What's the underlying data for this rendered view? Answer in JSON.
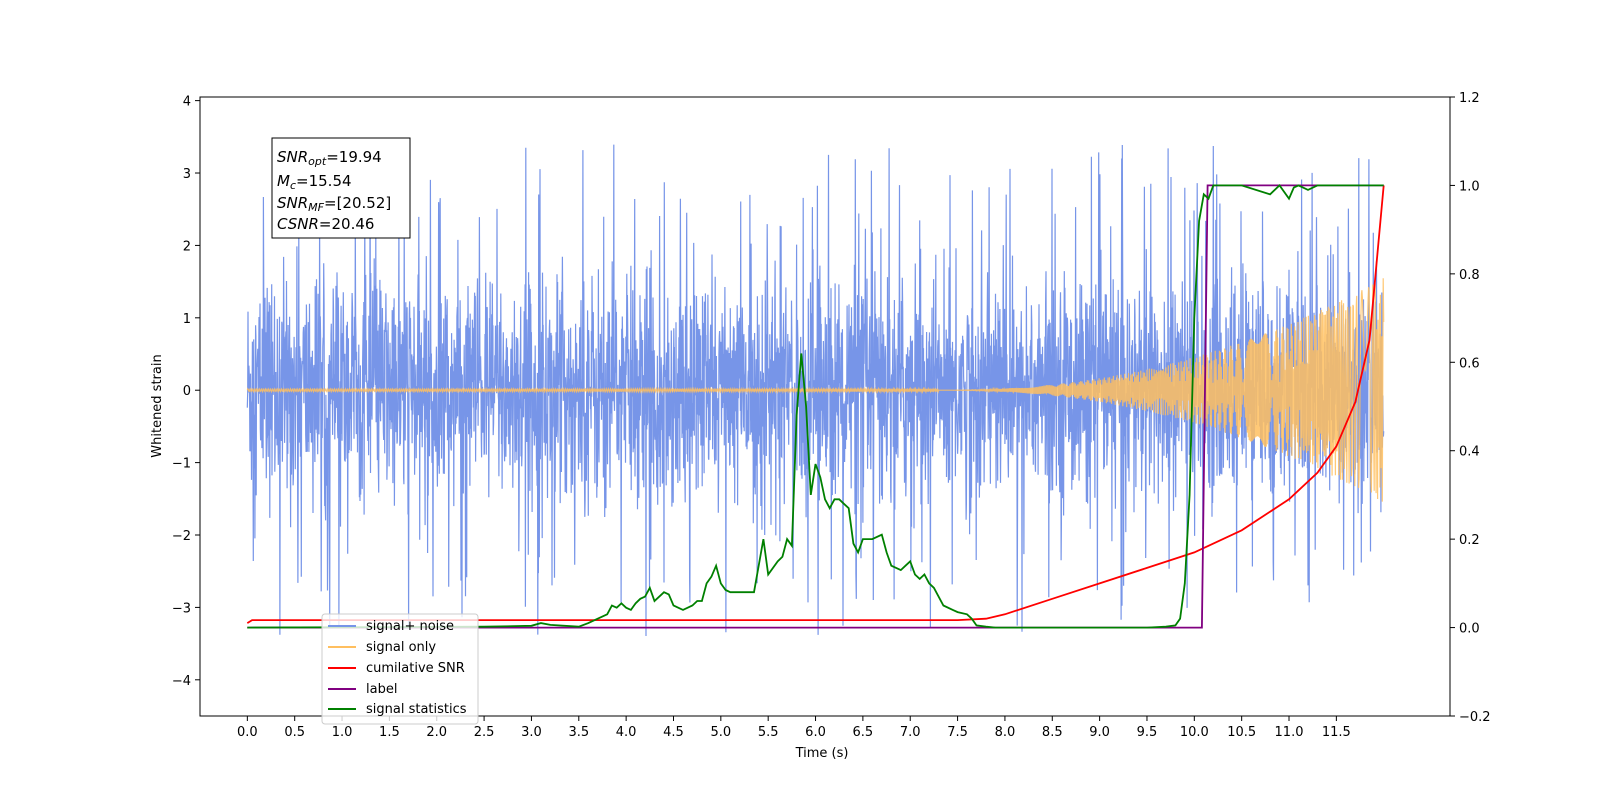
{
  "chart_data": {
    "type": "line",
    "xlabel": "Time (s)",
    "ylabel": "Whitened strain",
    "xlim": [
      -0.5,
      12.7
    ],
    "ylim_left": [
      -4.5,
      4.05
    ],
    "ylim_right": [
      -0.2,
      1.2
    ],
    "x_ticks": [
      "0.0",
      "0.5",
      "1.0",
      "1.5",
      "2.0",
      "2.5",
      "3.0",
      "3.5",
      "4.0",
      "4.5",
      "5.0",
      "5.5",
      "6.0",
      "6.5",
      "7.0",
      "7.5",
      "8.0",
      "8.5",
      "9.0",
      "9.5",
      "10.0",
      "10.5",
      "11.0",
      "11.5"
    ],
    "y_ticks_left": [
      "4",
      "3",
      "2",
      "1",
      "0",
      "−1",
      "−2",
      "−3",
      "−4"
    ],
    "y_ticks_right": [
      "1.2",
      "1.0",
      "0.8",
      "0.6",
      "0.4",
      "0.2",
      "0.0",
      "−0.2"
    ],
    "annotation": {
      "snr_opt": {
        "sym": "SNR",
        "sub": "opt",
        "val": "=19.94"
      },
      "mc": {
        "sym": "M",
        "sub": "c",
        "val": "=15.54"
      },
      "snr_mf": {
        "sym": "SNR",
        "sub": "MF",
        "val": "=[20.52]"
      },
      "csnr": {
        "sym": "CSNR",
        "val": "=20.46"
      }
    },
    "series": [
      {
        "name": "signal+ noise",
        "color": "#7795e8",
        "axis": "left",
        "kind": "noise",
        "x_range": [
          0.0,
          12.0
        ],
        "typical_amplitude": 1.8,
        "peak_max": 3.68,
        "peak_min": -4.1
      },
      {
        "name": "signal only",
        "color": "#ffbf5f",
        "axis": "left",
        "kind": "chirp",
        "x_range": [
          0.0,
          12.0
        ],
        "amplitude_end": 1.55,
        "chirp_onset": 7.3
      },
      {
        "name": "cumilative SNR",
        "color": "#ff0000",
        "axis": "right",
        "x": [
          0.0,
          0.05,
          7.5,
          7.8,
          8.0,
          8.5,
          9.0,
          9.5,
          10.0,
          10.5,
          11.0,
          11.3,
          11.5,
          11.7,
          11.85,
          12.0
        ],
        "y": [
          0.01,
          0.017,
          0.017,
          0.02,
          0.03,
          0.065,
          0.1,
          0.135,
          0.17,
          0.22,
          0.29,
          0.35,
          0.41,
          0.51,
          0.65,
          1.0
        ]
      },
      {
        "name": "label",
        "color": "#800080",
        "axis": "right",
        "x": [
          0.0,
          10.08,
          10.14,
          12.0
        ],
        "y": [
          0.0,
          0.0,
          1.0,
          1.0
        ]
      },
      {
        "name": "signal statistics",
        "color": "#008000",
        "axis": "right",
        "x": [
          0.0,
          2.5,
          3.0,
          3.1,
          3.2,
          3.5,
          3.6,
          3.7,
          3.8,
          3.85,
          3.9,
          3.95,
          4.0,
          4.05,
          4.1,
          4.15,
          4.2,
          4.25,
          4.3,
          4.35,
          4.4,
          4.45,
          4.5,
          4.55,
          4.6,
          4.7,
          4.75,
          4.8,
          4.85,
          4.9,
          4.95,
          5.0,
          5.05,
          5.1,
          5.2,
          5.3,
          5.35,
          5.45,
          5.5,
          5.6,
          5.65,
          5.7,
          5.75,
          5.8,
          5.85,
          5.9,
          5.95,
          6.0,
          6.05,
          6.1,
          6.15,
          6.2,
          6.25,
          6.3,
          6.35,
          6.4,
          6.45,
          6.5,
          6.55,
          6.6,
          6.7,
          6.75,
          6.8,
          6.9,
          6.95,
          7.0,
          7.05,
          7.1,
          7.15,
          7.2,
          7.25,
          7.35,
          7.45,
          7.5,
          7.6,
          7.65,
          7.7,
          7.8,
          7.9,
          8.0,
          8.5,
          9.0,
          9.5,
          9.7,
          9.8,
          9.85,
          9.9,
          9.95,
          10.0,
          10.05,
          10.1,
          10.15,
          10.2,
          10.25,
          10.3,
          10.5,
          10.8,
          10.9,
          11.0,
          11.05,
          11.1,
          11.2,
          11.3,
          11.4,
          12.0
        ],
        "y": [
          0.0,
          0.002,
          0.004,
          0.01,
          0.006,
          0.002,
          0.01,
          0.02,
          0.03,
          0.05,
          0.045,
          0.055,
          0.045,
          0.04,
          0.055,
          0.065,
          0.07,
          0.09,
          0.06,
          0.07,
          0.08,
          0.075,
          0.05,
          0.045,
          0.04,
          0.05,
          0.06,
          0.06,
          0.1,
          0.115,
          0.14,
          0.1,
          0.085,
          0.08,
          0.08,
          0.08,
          0.08,
          0.2,
          0.12,
          0.15,
          0.16,
          0.2,
          0.185,
          0.48,
          0.62,
          0.5,
          0.3,
          0.37,
          0.34,
          0.29,
          0.27,
          0.29,
          0.29,
          0.28,
          0.27,
          0.19,
          0.17,
          0.2,
          0.2,
          0.2,
          0.21,
          0.17,
          0.14,
          0.13,
          0.14,
          0.15,
          0.12,
          0.11,
          0.12,
          0.1,
          0.09,
          0.05,
          0.04,
          0.035,
          0.03,
          0.02,
          0.005,
          0.002,
          0.0,
          0.0,
          0.0,
          0.0,
          0.0,
          0.002,
          0.005,
          0.02,
          0.1,
          0.3,
          0.7,
          0.92,
          0.98,
          0.97,
          1.0,
          1.0,
          1.0,
          1.0,
          0.98,
          1.0,
          0.97,
          0.995,
          1.0,
          0.99,
          1.0,
          1.0,
          1.0
        ]
      }
    ],
    "legend_location": "lower-left",
    "grid": false
  }
}
